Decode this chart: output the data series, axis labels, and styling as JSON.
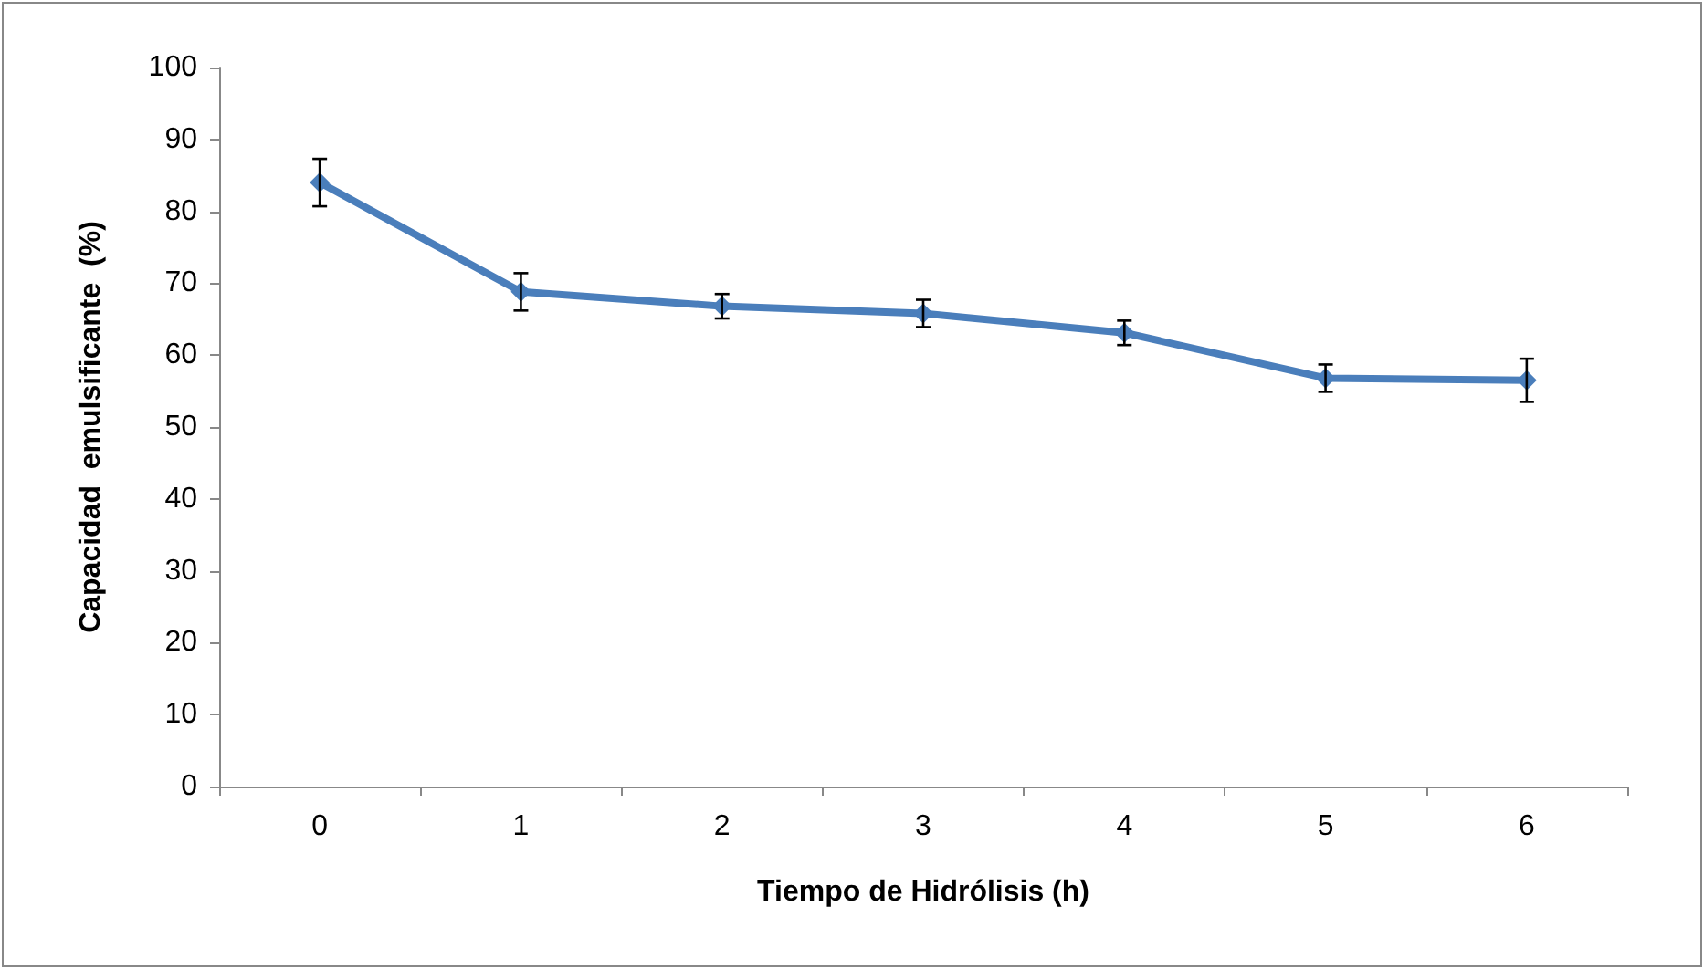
{
  "chart_data": {
    "type": "line",
    "xlabel": "Tiempo de Hidrólisis (h)",
    "ylabel": "Capacidad  emulsificante  (%)",
    "categories": [
      "0",
      "1",
      "2",
      "3",
      "4",
      "5",
      "6"
    ],
    "series": [
      {
        "color": "#4a7ebb",
        "values": [
          84,
          68.8,
          66.8,
          65.8,
          63.1,
          56.8,
          56.5
        ],
        "errors": [
          3.3,
          2.6,
          1.7,
          1.9,
          1.7,
          1.9,
          3
        ]
      }
    ],
    "ylim": [
      0,
      100
    ],
    "yticks": [
      0,
      10,
      20,
      30,
      40,
      50,
      60,
      70,
      80,
      90,
      100
    ],
    "marker": "diamond",
    "line_style": "solid"
  }
}
